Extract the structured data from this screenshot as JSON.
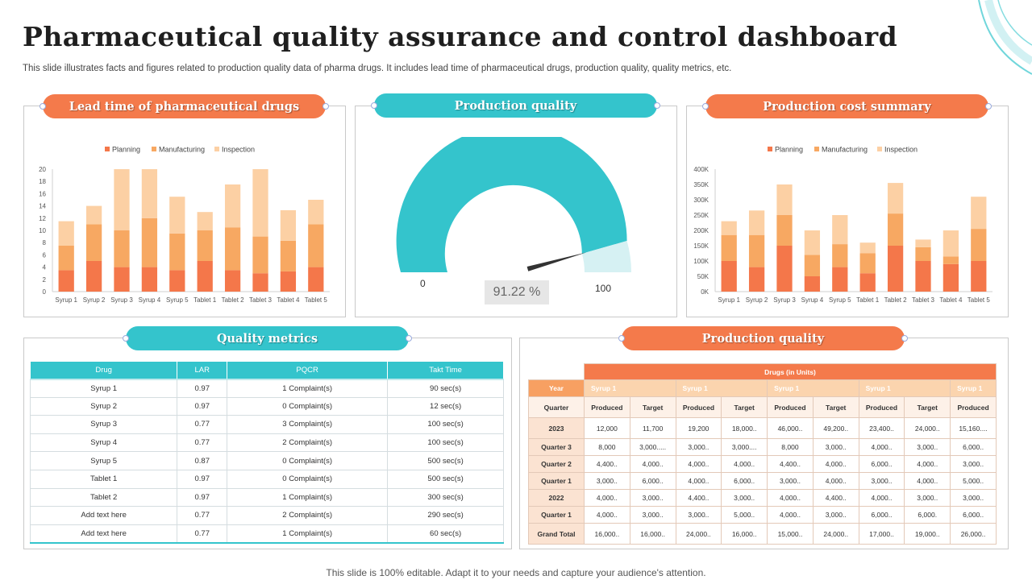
{
  "header": {
    "title": "Pharmaceutical quality assurance and control dashboard",
    "subtitle": "This slide illustrates facts and figures related to production quality data of pharma drugs. It includes lead time of pharmaceutical drugs, production quality, quality metrics, etc."
  },
  "footer": "This slide is 100% editable. Adapt it to your needs and capture your audience's attention.",
  "colors": {
    "orange": "#f47a4b",
    "teal": "#34c4cc",
    "planning": "#f4774a",
    "manufacturing": "#f7a862",
    "inspection": "#fcd0a4"
  },
  "panels": {
    "lead_time": "Lead time of pharmaceutical drugs",
    "gauge": "Production quality",
    "cost": "Production cost summary",
    "metrics": "Quality metrics",
    "production": "Production quality"
  },
  "chart_data": [
    {
      "type": "bar",
      "stacked": true,
      "categories": [
        "Syrup 1",
        "Syrup 2",
        "Syrup 3",
        "Syrup 4",
        "Syrup 5",
        "Tablet 1",
        "Tablet 2",
        "Tablet 3",
        "Tablet 4",
        "Tablet 5"
      ],
      "series": [
        {
          "name": "Planning",
          "values": [
            3.5,
            5,
            4,
            4,
            3.5,
            5,
            3.5,
            3,
            3.3,
            4
          ]
        },
        {
          "name": "Manufacturing",
          "values": [
            4,
            6,
            6,
            8,
            6,
            5,
            7,
            6,
            5,
            7
          ]
        },
        {
          "name": "Inspection",
          "values": [
            4,
            3,
            10,
            8,
            6,
            3,
            7,
            11,
            5,
            4
          ]
        }
      ],
      "ylim": [
        0,
        20
      ],
      "yticks": [
        "0",
        "2",
        "4",
        "6",
        "8",
        "10",
        "12",
        "14",
        "16",
        "18",
        "20"
      ],
      "legend": "top",
      "grid": false
    },
    {
      "type": "gauge",
      "value": 91.22,
      "value_label": "91.22 %",
      "min_label": "0",
      "max_label": "100"
    },
    {
      "type": "bar",
      "stacked": true,
      "categories": [
        "Syrup 1",
        "Syrup 2",
        "Syrup 3",
        "Syrup 4",
        "Syrup 5",
        "Tablet 1",
        "Tablet 2",
        "Tablet 3",
        "Tablet 4",
        "Tablet 5"
      ],
      "series": [
        {
          "name": "Planning",
          "values": [
            100000,
            80000,
            150000,
            50000,
            80000,
            60000,
            150000,
            100000,
            90000,
            100000
          ]
        },
        {
          "name": "Manufacturing",
          "values": [
            85000,
            105000,
            100000,
            70000,
            75000,
            65000,
            105000,
            45000,
            25000,
            105000
          ]
        },
        {
          "name": "Inspection",
          "values": [
            45000,
            80000,
            100000,
            80000,
            95000,
            35000,
            100000,
            25000,
            85000,
            105000
          ]
        }
      ],
      "ylim": [
        0,
        400000
      ],
      "yticks": [
        "0K",
        "50K",
        "100K",
        "150K",
        "200K",
        "250K",
        "300K",
        "350K",
        "400K"
      ],
      "legend": "top",
      "grid": false
    }
  ],
  "quality_metrics": {
    "headers": [
      "Drug",
      "LAR",
      "PQCR",
      "Takt Time"
    ],
    "rows": [
      [
        "Syrup 1",
        "0.97",
        "1 Complaint(s)",
        "90 sec(s)"
      ],
      [
        "Syrup 2",
        "0.97",
        "0 Complaint(s)",
        "12 sec(s)"
      ],
      [
        "Syrup 3",
        "0.77",
        "3 Complaint(s)",
        "100 sec(s)"
      ],
      [
        "Syrup 4",
        "0.77",
        "2 Complaint(s)",
        "100 sec(s)"
      ],
      [
        "Syrup 5",
        "0.87",
        "0 Complaint(s)",
        "500 sec(s)"
      ],
      [
        "Tablet 1",
        "0.97",
        "0 Complaint(s)",
        "500 sec(s)"
      ],
      [
        "Tablet 2",
        "0.97",
        "1 Complaint(s)",
        "300 sec(s)"
      ],
      [
        "Add text here",
        "0.77",
        "2 Complaint(s)",
        "290 sec(s)"
      ],
      [
        "Add text here",
        "0.77",
        "1 Complaint(s)",
        "60 sec(s)"
      ]
    ]
  },
  "production_table": {
    "title": "Drugs (in Units)",
    "year_label": "Year",
    "drugs": [
      "Syrup 1",
      "Syrup 1",
      "Syrup 1",
      "Syrup 1",
      "Syrup 1"
    ],
    "quarter_label": "Quarter",
    "sub_headers": [
      "Produced",
      "Target",
      "Produced",
      "Target",
      "Produced",
      "Target",
      "Produced",
      "Target",
      "Produced"
    ],
    "rows": [
      {
        "label": "2023",
        "values": [
          "12,000",
          "11,700",
          "19,200",
          "18,000..",
          "46,000..",
          "49,200..",
          "23,400..",
          "24,000..",
          "15,160...."
        ]
      },
      {
        "label": "Quarter 3",
        "values": [
          "8,000",
          "3,000.....",
          "3,000..",
          "3,000....",
          "8,000",
          "3,000..",
          "4,000..",
          "3,000..",
          "6,000.."
        ]
      },
      {
        "label": "Quarter 2",
        "values": [
          "4,400..",
          "4,000..",
          "4,000..",
          "4,000..",
          "4,400..",
          "4,000..",
          "6,000..",
          "4,000..",
          "3,000.."
        ]
      },
      {
        "label": "Quarter 1",
        "values": [
          "3,000..",
          "6,000..",
          "4,000..",
          "6,000..",
          "3,000..",
          "4,000..",
          "3,000..",
          "4,000..",
          "5,000.."
        ]
      },
      {
        "label": "2022",
        "values": [
          "4,000..",
          "3,000..",
          "4,400..",
          "3,000..",
          "4,000..",
          "4,400..",
          "4,000..",
          "3,000..",
          "3,000.."
        ]
      },
      {
        "label": "Quarter 1",
        "values": [
          "4,000..",
          "3,000..",
          "3,000..",
          "5,000..",
          "4,000..",
          "3,000..",
          "6,000..",
          "6,000.",
          "6,000.."
        ]
      },
      {
        "label": "Grand Total",
        "values": [
          "16,000..",
          "16,000..",
          "24,000..",
          "16,000..",
          "15,000..",
          "24,000..",
          "17,000..",
          "19,000..",
          "26,000.."
        ]
      }
    ]
  }
}
